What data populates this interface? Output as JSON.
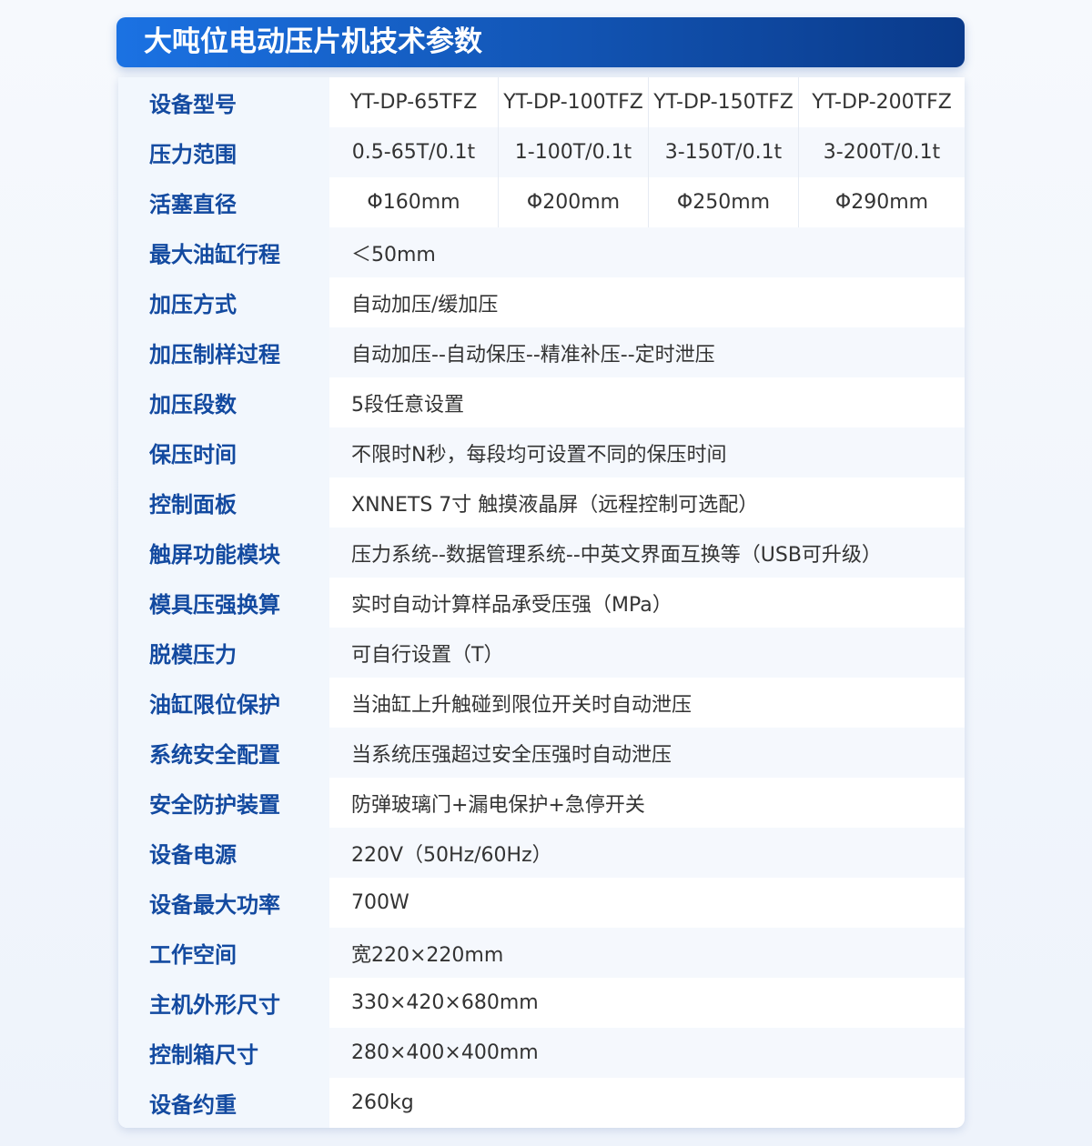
{
  "title": "大吨位电动压片机技术参数",
  "multi_rows": [
    {
      "label": "设备型号",
      "values": [
        "YT-DP-65TFZ",
        "YT-DP-100TFZ",
        "YT-DP-150TFZ",
        "YT-DP-200TFZ"
      ]
    },
    {
      "label": "压力范围",
      "values": [
        "0.5-65T/0.1t",
        "1-100T/0.1t",
        "3-150T/0.1t",
        "3-200T/0.1t"
      ]
    },
    {
      "label": "活塞直径",
      "values": [
        "Φ160mm",
        "Φ200mm",
        "Φ250mm",
        "Φ290mm"
      ]
    }
  ],
  "rows": [
    {
      "label": "最大油缸行程",
      "value": "＜50mm"
    },
    {
      "label": "加压方式",
      "value": "自动加压/缓加压"
    },
    {
      "label": "加压制样过程",
      "value": "自动加压--自动保压--精准补压--定时泄压"
    },
    {
      "label": "加压段数",
      "value": "5段任意设置"
    },
    {
      "label": "保压时间",
      "value": "不限时N秒，每段均可设置不同的保压时间"
    },
    {
      "label": "控制面板",
      "value": "XNNETS 7寸 触摸液晶屏（远程控制可选配）"
    },
    {
      "label": "触屏功能模块",
      "value": "压力系统--数据管理系统--中英文界面互换等（USB可升级）"
    },
    {
      "label": "模具压强换算",
      "value": "实时自动计算样品承受压强（MPa）"
    },
    {
      "label": "脱模压力",
      "value": "可自行设置（T）"
    },
    {
      "label": "油缸限位保护",
      "value": "当油缸上升触碰到限位开关时自动泄压"
    },
    {
      "label": "系统安全配置",
      "value": "当系统压强超过安全压强时自动泄压"
    },
    {
      "label": "安全防护装置",
      "value": "防弹玻璃门+漏电保护+急停开关"
    },
    {
      "label": "设备电源",
      "value": "220V（50Hz/60Hz）"
    },
    {
      "label": "设备最大功率",
      "value": "700W"
    },
    {
      "label": "工作空间",
      "value": "宽220×220mm"
    },
    {
      "label": "主机外形尺寸",
      "value": "330×420×680mm"
    },
    {
      "label": "控制箱尺寸",
      "value": "280×400×400mm"
    },
    {
      "label": "设备约重",
      "value": "260kg"
    }
  ]
}
